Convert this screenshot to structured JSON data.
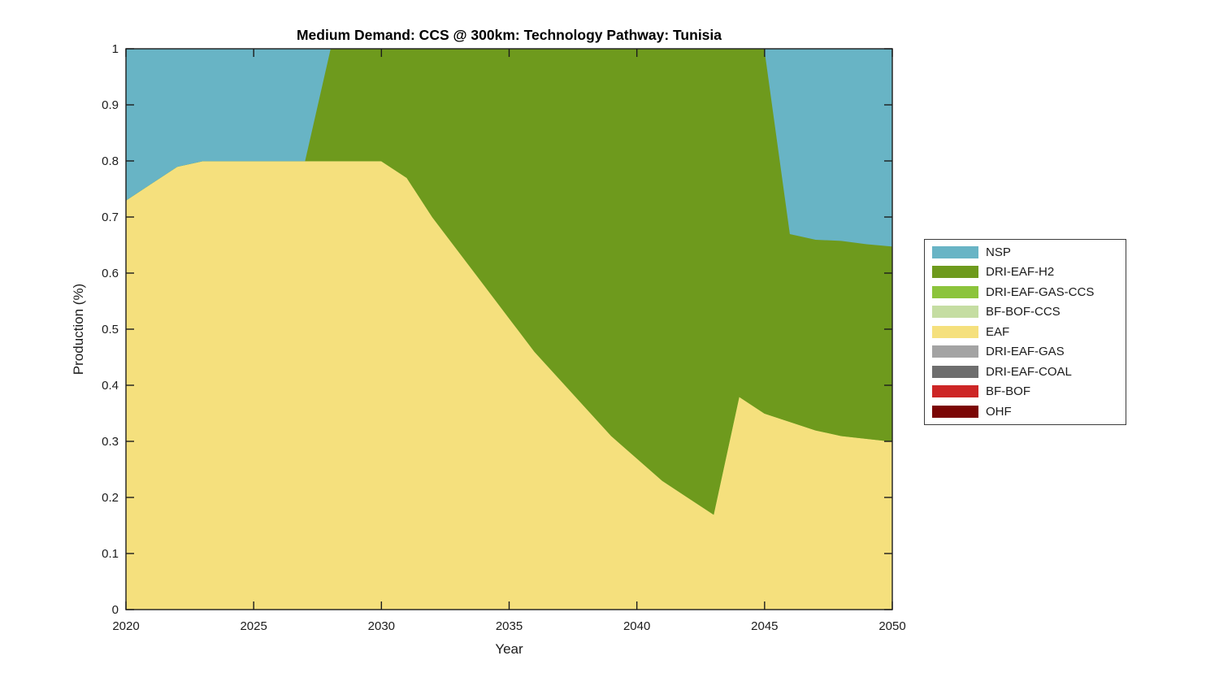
{
  "title": "Medium Demand: CCS @ 300km: Technology Pathway: Tunisia",
  "chart_data": {
    "type": "area",
    "stacked": true,
    "stack_order": "series listed top-to-bottom; rendered bottom layer is the last series (OHF) and top layer is the first (NSP)",
    "title": "Medium Demand: CCS @ 300km: Technology Pathway: Tunisia",
    "xlabel": "Year",
    "ylabel": "Production (%)",
    "xlim": [
      2020,
      2050
    ],
    "ylim": [
      0,
      1
    ],
    "xticks": [
      2020,
      2025,
      2030,
      2035,
      2040,
      2045,
      2050
    ],
    "yticks": [
      0,
      0.1,
      0.2,
      0.3,
      0.4,
      0.5,
      0.6,
      0.7,
      0.8,
      0.9,
      1
    ],
    "ytick_labels": [
      "0",
      "0.1",
      "0.2",
      "0.3",
      "0.4",
      "0.5",
      "0.6",
      "0.7",
      "0.8",
      "0.9",
      "1"
    ],
    "grid": false,
    "plot_background": "#ffffff",
    "axis_color": "#1c1c1c",
    "legend_position": "right-outside",
    "x": [
      2020,
      2021,
      2022,
      2023,
      2024,
      2025,
      2026,
      2027,
      2028,
      2029,
      2030,
      2031,
      2032,
      2033,
      2034,
      2035,
      2036,
      2037,
      2038,
      2039,
      2040,
      2041,
      2042,
      2043,
      2044,
      2045,
      2046,
      2047,
      2048,
      2049,
      2050
    ],
    "series": [
      {
        "name": "NSP",
        "color": "#68b4c5",
        "values": [
          0.27,
          0.24,
          0.21,
          0.2,
          0.2,
          0.2,
          0.2,
          0.2,
          0,
          0,
          0,
          0,
          0,
          0,
          0,
          0,
          0,
          0,
          0,
          0,
          0,
          0,
          0,
          0,
          0,
          0,
          0.33,
          0.34,
          0.342,
          0.348,
          0.352
        ]
      },
      {
        "name": "DRI-EAF-H2",
        "color": "#6e9a1d",
        "values": [
          0,
          0,
          0,
          0,
          0,
          0,
          0,
          0,
          0.2,
          0.2,
          0.2,
          0.23,
          0.3,
          0.36,
          0.42,
          0.48,
          0.54,
          0.59,
          0.64,
          0.69,
          0.73,
          0.77,
          0.8,
          0.83,
          0.62,
          0.65,
          0.335,
          0.34,
          0.348,
          0.347,
          0.348
        ]
      },
      {
        "name": "DRI-EAF-GAS-CCS",
        "color": "#8cc43c",
        "values": [
          0,
          0,
          0,
          0,
          0,
          0,
          0,
          0,
          0,
          0,
          0,
          0,
          0,
          0,
          0,
          0,
          0,
          0,
          0,
          0,
          0,
          0,
          0,
          0,
          0,
          0,
          0,
          0,
          0,
          0,
          0
        ]
      },
      {
        "name": "BF-BOF-CCS",
        "color": "#c5dda2",
        "values": [
          0,
          0,
          0,
          0,
          0,
          0,
          0,
          0,
          0,
          0,
          0,
          0,
          0,
          0,
          0,
          0,
          0,
          0,
          0,
          0,
          0,
          0,
          0,
          0,
          0,
          0,
          0,
          0,
          0,
          0,
          0
        ]
      },
      {
        "name": "EAF",
        "color": "#f5e07d",
        "values": [
          0.73,
          0.76,
          0.79,
          0.8,
          0.8,
          0.8,
          0.8,
          0.8,
          0.8,
          0.8,
          0.8,
          0.77,
          0.7,
          0.64,
          0.58,
          0.52,
          0.46,
          0.41,
          0.36,
          0.31,
          0.27,
          0.23,
          0.2,
          0.17,
          0.38,
          0.35,
          0.335,
          0.32,
          0.31,
          0.305,
          0.3
        ]
      },
      {
        "name": "DRI-EAF-GAS",
        "color": "#a3a3a3",
        "values": [
          0,
          0,
          0,
          0,
          0,
          0,
          0,
          0,
          0,
          0,
          0,
          0,
          0,
          0,
          0,
          0,
          0,
          0,
          0,
          0,
          0,
          0,
          0,
          0,
          0,
          0,
          0,
          0,
          0,
          0,
          0
        ]
      },
      {
        "name": "DRI-EAF-COAL",
        "color": "#6e6e6e",
        "values": [
          0,
          0,
          0,
          0,
          0,
          0,
          0,
          0,
          0,
          0,
          0,
          0,
          0,
          0,
          0,
          0,
          0,
          0,
          0,
          0,
          0,
          0,
          0,
          0,
          0,
          0,
          0,
          0,
          0,
          0,
          0
        ]
      },
      {
        "name": "BF-BOF",
        "color": "#cd2626",
        "values": [
          0,
          0,
          0,
          0,
          0,
          0,
          0,
          0,
          0,
          0,
          0,
          0,
          0,
          0,
          0,
          0,
          0,
          0,
          0,
          0,
          0,
          0,
          0,
          0,
          0,
          0,
          0,
          0,
          0,
          0,
          0
        ]
      },
      {
        "name": "OHF",
        "color": "#7b0605",
        "values": [
          0,
          0,
          0,
          0,
          0,
          0,
          0,
          0,
          0,
          0,
          0,
          0,
          0,
          0,
          0,
          0,
          0,
          0,
          0,
          0,
          0,
          0,
          0,
          0,
          0,
          0,
          0,
          0,
          0,
          0,
          0
        ]
      }
    ]
  }
}
